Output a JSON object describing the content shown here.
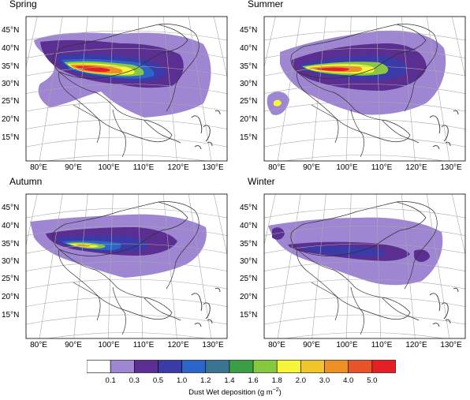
{
  "panels": [
    {
      "title": "Spring",
      "key": "spring"
    },
    {
      "title": "Summer",
      "key": "summer"
    },
    {
      "title": "Autumn",
      "key": "autumn"
    },
    {
      "title": "Winter",
      "key": "winter"
    }
  ],
  "lat_labels": [
    "45°N",
    "40°N",
    "35°N",
    "30°N",
    "25°N",
    "20°N",
    "15°N"
  ],
  "lon_labels": [
    "80°E",
    "90°E",
    "100°E",
    "110°E",
    "120°E",
    "130°E"
  ],
  "legend": {
    "ticks": [
      "0.1",
      "0.3",
      "0.5",
      "1.0",
      "1.2",
      "1.4",
      "1.6",
      "1.8",
      "2.0",
      "3.0",
      "4.0",
      "5.0"
    ],
    "colors": [
      "#ffffff",
      "#9e86d2",
      "#5b2e91",
      "#3a3aa8",
      "#2a66c8",
      "#3a7490",
      "#3c9e44",
      "#86c93e",
      "#f5f53a",
      "#f0c42a",
      "#ee9024",
      "#e8542a",
      "#e41f25"
    ],
    "unit_label": "Dust Wet deposition (g m"
  }
}
